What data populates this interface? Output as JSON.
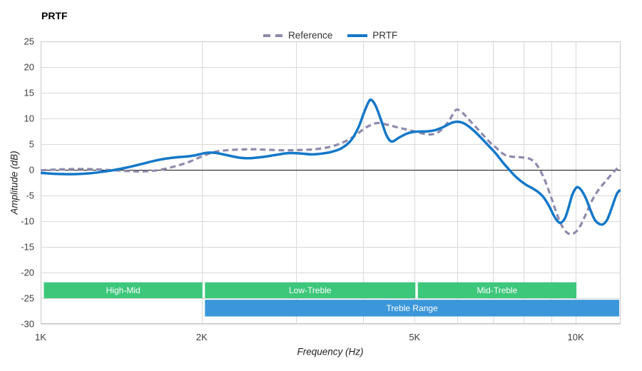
{
  "title": "PRTF",
  "legend": {
    "items": [
      {
        "label": "Reference",
        "series": "reference"
      },
      {
        "label": "PRTF",
        "series": "prtf"
      }
    ]
  },
  "colors": {
    "reference": "#8e8aac",
    "prtf": "#1478c8",
    "green_band": "#3dc77b",
    "blue_band": "#3b97da",
    "grid": "#d9d9d9",
    "frame": "#c9c9c9",
    "zero_line": "#141414",
    "tick_text": "#3d3d3d",
    "band_text": "#ffffff"
  },
  "chart_data": {
    "type": "line",
    "title": "PRTF",
    "xlabel": "Frequency (Hz)",
    "ylabel": "Amplitude (dB)",
    "x_scale": "log",
    "xlim": [
      1000,
      12130
    ],
    "ylim": [
      -30,
      25
    ],
    "grid": true,
    "legend_position": "top",
    "y_ticks": [
      25,
      20,
      15,
      10,
      5,
      0,
      -5,
      -10,
      -15,
      -20,
      -25,
      -30
    ],
    "x_ticks": [
      {
        "f": 1000,
        "label": "1K"
      },
      {
        "f": 2000,
        "label": "2K"
      },
      {
        "f": 5000,
        "label": "5K"
      },
      {
        "f": 10000,
        "label": "10K"
      }
    ],
    "x_gridlines": [
      2000,
      3000,
      4000,
      5000,
      6000,
      7000,
      8000,
      9000,
      10000
    ],
    "series": [
      {
        "name": "Reference",
        "style": "dashed",
        "color_key": "reference",
        "points": [
          [
            1000,
            -0.1
          ],
          [
            1100,
            0.1
          ],
          [
            1200,
            0.15
          ],
          [
            1300,
            0.05
          ],
          [
            1400,
            -0.15
          ],
          [
            1500,
            -0.3
          ],
          [
            1600,
            -0.25
          ],
          [
            1700,
            0.15
          ],
          [
            1800,
            0.8
          ],
          [
            1900,
            1.6
          ],
          [
            2000,
            2.6
          ],
          [
            2100,
            3.4
          ],
          [
            2200,
            3.75
          ],
          [
            2350,
            3.95
          ],
          [
            2500,
            4.0
          ],
          [
            2650,
            3.9
          ],
          [
            2850,
            3.8
          ],
          [
            3050,
            3.85
          ],
          [
            3250,
            4.0
          ],
          [
            3450,
            4.4
          ],
          [
            3650,
            5.2
          ],
          [
            3850,
            6.5
          ],
          [
            4050,
            8.2
          ],
          [
            4250,
            9.1
          ],
          [
            4450,
            8.75
          ],
          [
            4650,
            8.25
          ],
          [
            4850,
            7.8
          ],
          [
            5050,
            7.35
          ],
          [
            5250,
            6.95
          ],
          [
            5420,
            6.95
          ],
          [
            5600,
            7.7
          ],
          [
            5800,
            9.6
          ],
          [
            5950,
            11.5
          ],
          [
            6060,
            11.6
          ],
          [
            6200,
            10.7
          ],
          [
            6350,
            9.5
          ],
          [
            6550,
            8.0
          ],
          [
            6750,
            6.5
          ],
          [
            6950,
            5.1
          ],
          [
            7100,
            4.3
          ],
          [
            7250,
            3.4
          ],
          [
            7450,
            2.7
          ],
          [
            7700,
            2.5
          ],
          [
            7950,
            2.4
          ],
          [
            8200,
            2.15
          ],
          [
            8400,
            1.35
          ],
          [
            8600,
            -0.3
          ],
          [
            8800,
            -2.6
          ],
          [
            9000,
            -5.4
          ],
          [
            9200,
            -8.3
          ],
          [
            9400,
            -10.7
          ],
          [
            9600,
            -12.1
          ],
          [
            9800,
            -12.55
          ],
          [
            10000,
            -12.1
          ],
          [
            10200,
            -10.9
          ],
          [
            10450,
            -8.6
          ],
          [
            10750,
            -5.8
          ],
          [
            11050,
            -3.8
          ],
          [
            11400,
            -2.1
          ],
          [
            11800,
            -0.3
          ],
          [
            12130,
            0.8
          ]
        ]
      },
      {
        "name": "PRTF",
        "style": "solid",
        "color_key": "prtf",
        "points": [
          [
            1000,
            -0.6
          ],
          [
            1070,
            -0.8
          ],
          [
            1150,
            -0.85
          ],
          [
            1230,
            -0.7
          ],
          [
            1300,
            -0.4
          ],
          [
            1370,
            -0.05
          ],
          [
            1450,
            0.45
          ],
          [
            1540,
            1.1
          ],
          [
            1630,
            1.75
          ],
          [
            1720,
            2.2
          ],
          [
            1800,
            2.45
          ],
          [
            1880,
            2.6
          ],
          [
            1950,
            2.85
          ],
          [
            2040,
            3.3
          ],
          [
            2120,
            3.3
          ],
          [
            2230,
            2.85
          ],
          [
            2340,
            2.4
          ],
          [
            2450,
            2.25
          ],
          [
            2600,
            2.5
          ],
          [
            2750,
            2.9
          ],
          [
            2900,
            3.25
          ],
          [
            3050,
            3.2
          ],
          [
            3200,
            3.0
          ],
          [
            3350,
            3.15
          ],
          [
            3500,
            3.5
          ],
          [
            3650,
            4.2
          ],
          [
            3800,
            5.7
          ],
          [
            3920,
            8.1
          ],
          [
            4020,
            11.1
          ],
          [
            4100,
            13.2
          ],
          [
            4150,
            13.6
          ],
          [
            4230,
            12.4
          ],
          [
            4330,
            9.6
          ],
          [
            4430,
            6.7
          ],
          [
            4530,
            5.5
          ],
          [
            4680,
            6.3
          ],
          [
            4850,
            7.1
          ],
          [
            5000,
            7.4
          ],
          [
            5150,
            7.45
          ],
          [
            5300,
            7.5
          ],
          [
            5450,
            7.7
          ],
          [
            5650,
            8.3
          ],
          [
            5850,
            9.1
          ],
          [
            6000,
            9.35
          ],
          [
            6150,
            9.15
          ],
          [
            6300,
            8.5
          ],
          [
            6500,
            7.3
          ],
          [
            6700,
            5.9
          ],
          [
            6900,
            4.5
          ],
          [
            7100,
            3.1
          ],
          [
            7300,
            1.5
          ],
          [
            7500,
            0.1
          ],
          [
            7700,
            -1.2
          ],
          [
            7900,
            -2.2
          ],
          [
            8100,
            -3.0
          ],
          [
            8300,
            -3.6
          ],
          [
            8500,
            -4.3
          ],
          [
            8700,
            -5.3
          ],
          [
            8900,
            -6.9
          ],
          [
            9100,
            -8.9
          ],
          [
            9250,
            -10.0
          ],
          [
            9380,
            -10.3
          ],
          [
            9550,
            -9.4
          ],
          [
            9700,
            -7.3
          ],
          [
            9850,
            -4.9
          ],
          [
            10000,
            -3.6
          ],
          [
            10100,
            -3.4
          ],
          [
            10250,
            -4.0
          ],
          [
            10450,
            -5.6
          ],
          [
            10650,
            -7.8
          ],
          [
            10850,
            -9.7
          ],
          [
            11050,
            -10.5
          ],
          [
            11250,
            -10.6
          ],
          [
            11450,
            -9.7
          ],
          [
            11650,
            -7.7
          ],
          [
            11900,
            -5.0
          ],
          [
            12050,
            -4.1
          ],
          [
            12130,
            -4.1
          ]
        ]
      }
    ],
    "bands": [
      {
        "label": "High-Mid",
        "f_from": 1000,
        "f_to": 2000,
        "db_top": -21.9,
        "db_bottom": -25.0,
        "color_key": "green_band"
      },
      {
        "label": "Low-Treble",
        "f_from": 2000,
        "f_to": 5000,
        "db_top": -21.9,
        "db_bottom": -25.0,
        "color_key": "green_band"
      },
      {
        "label": "Mid-Treble",
        "f_from": 5000,
        "f_to": 10000,
        "db_top": -21.9,
        "db_bottom": -25.0,
        "color_key": "green_band"
      },
      {
        "label": "Treble Range",
        "f_from": 2000,
        "f_to": 12130,
        "db_top": -25.3,
        "db_bottom": -28.55,
        "color_key": "blue_band"
      }
    ]
  }
}
